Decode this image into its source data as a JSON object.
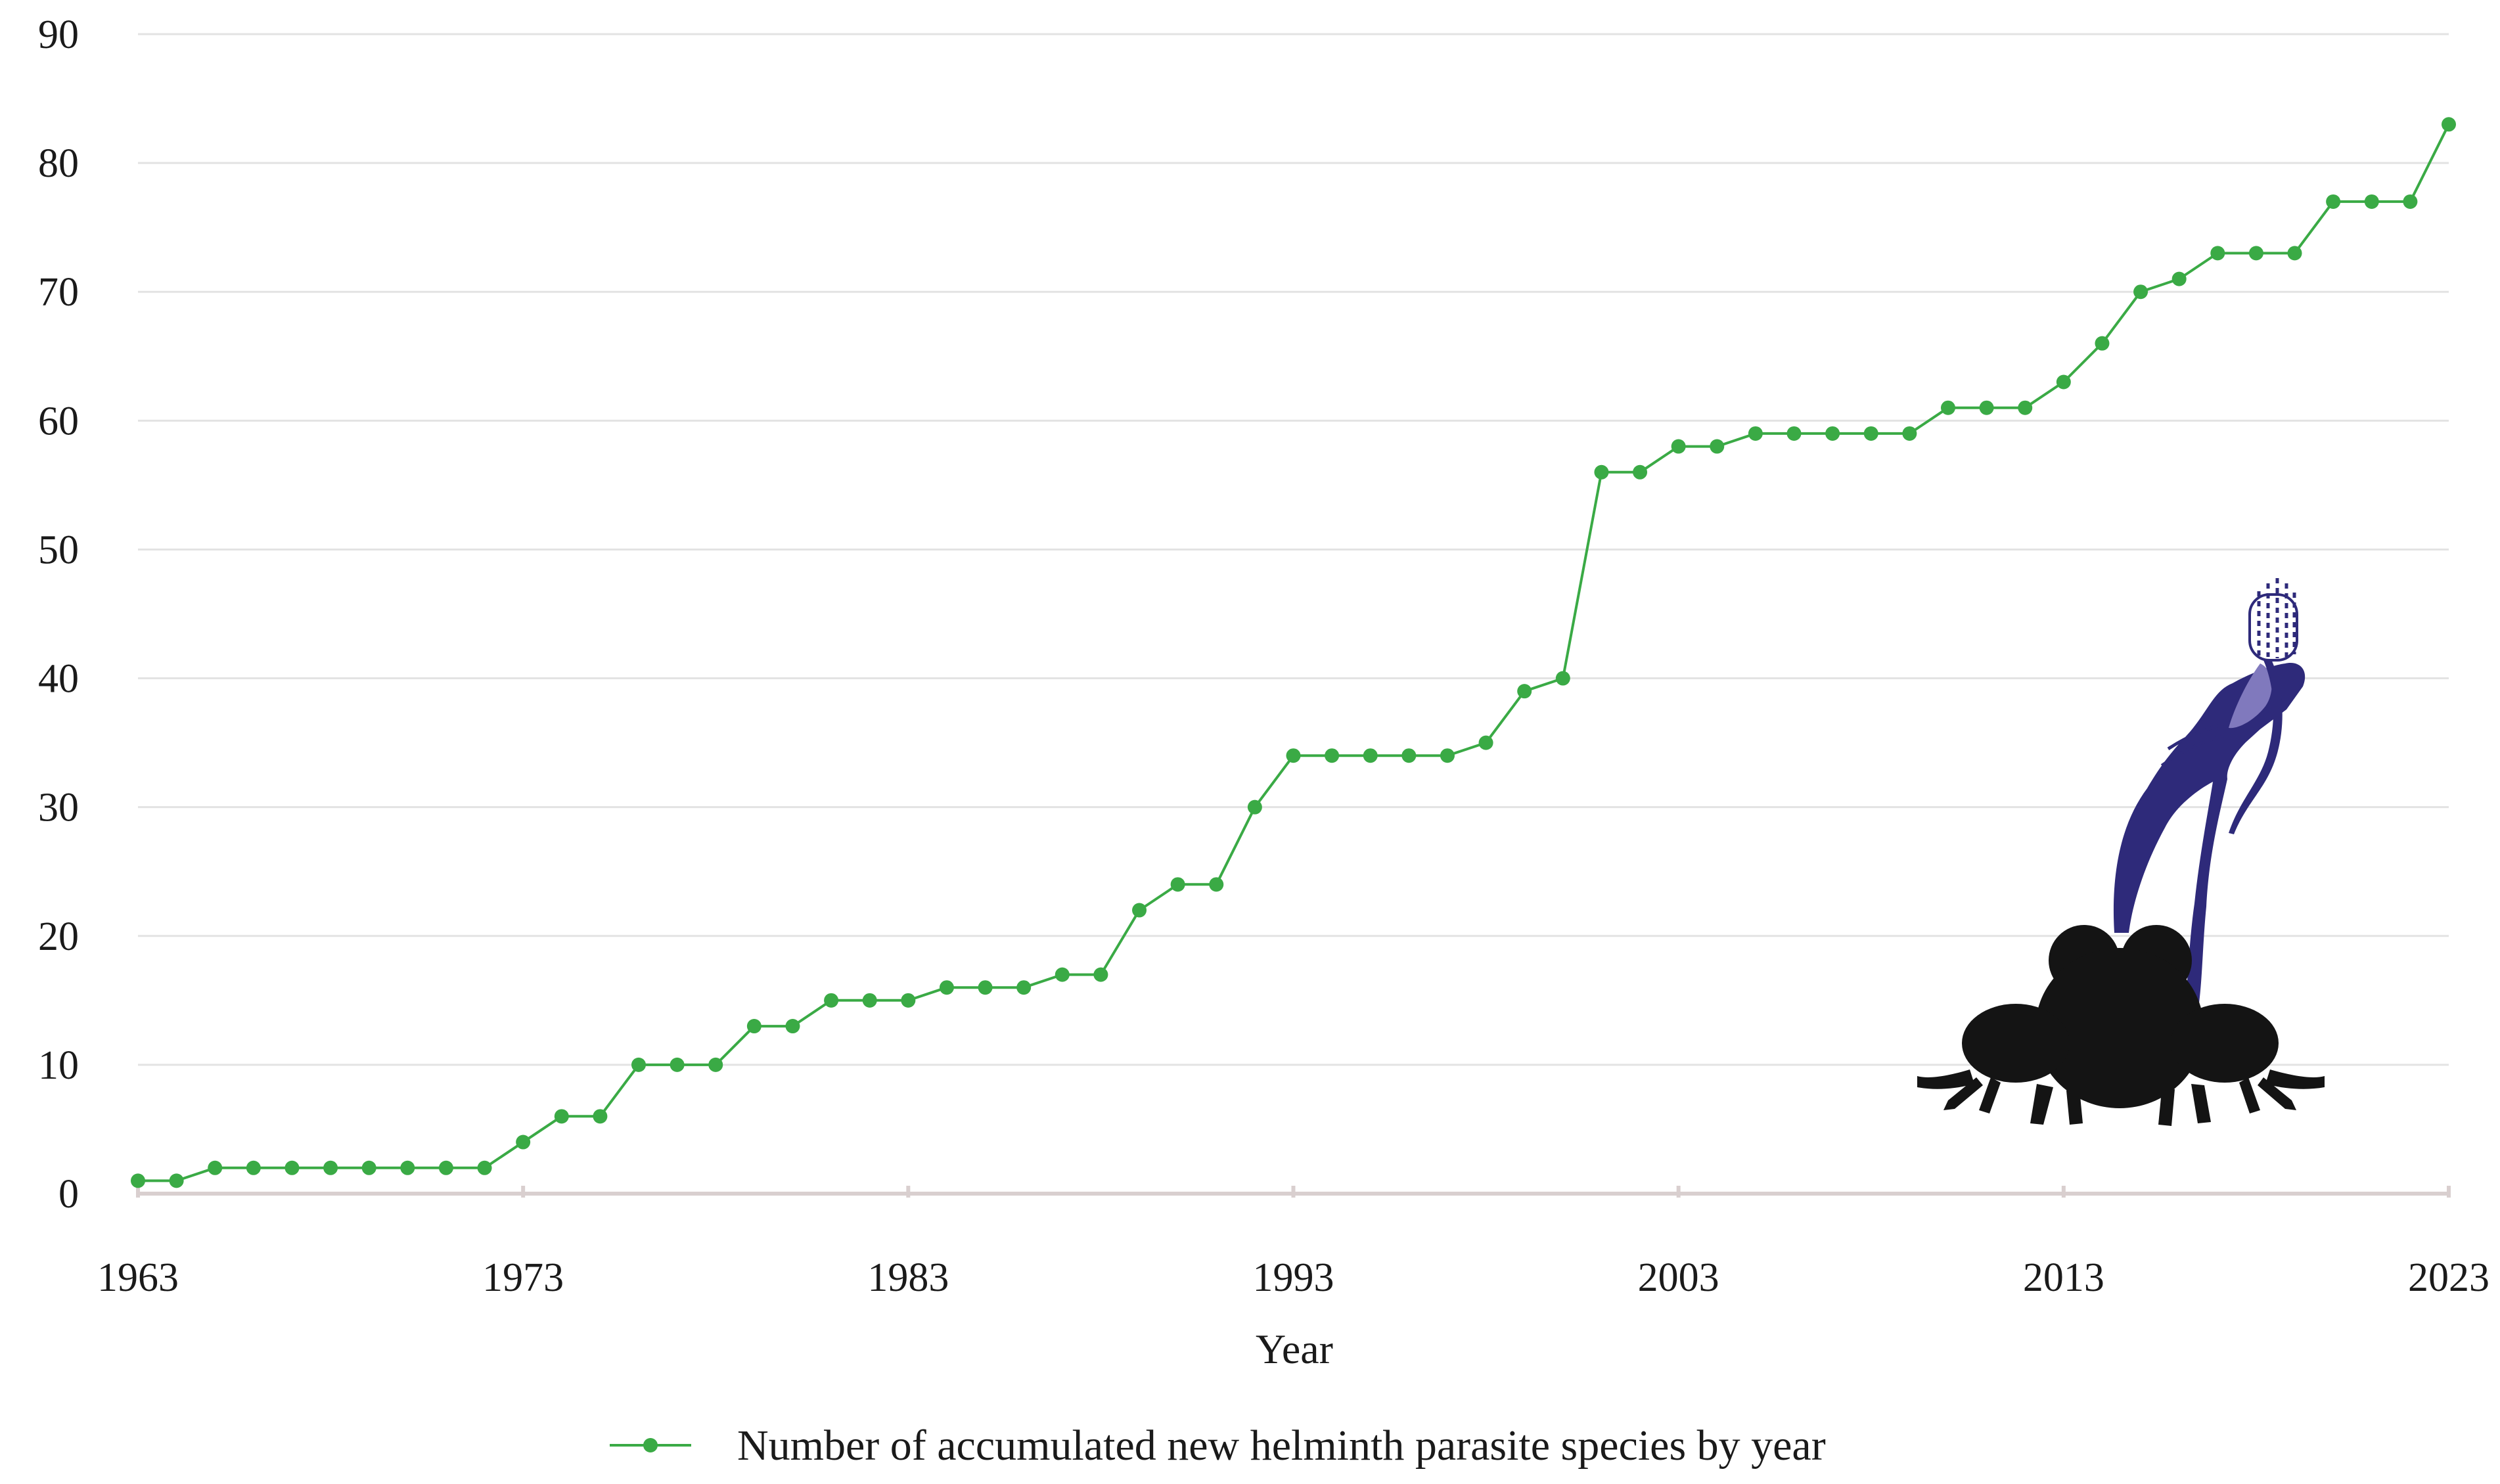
{
  "chart_data": {
    "type": "line",
    "title": "",
    "xlabel": "Year",
    "ylabel": "",
    "xlim": [
      1963,
      2023
    ],
    "ylim": [
      0,
      90
    ],
    "x_ticks": [
      "1963",
      "1973",
      "1983",
      "1993",
      "2003",
      "2013",
      "2023"
    ],
    "y_ticks": [
      "0",
      "10",
      "20",
      "30",
      "40",
      "50",
      "60",
      "70",
      "80",
      "90"
    ],
    "grid": "horizontal",
    "legend_position": "bottom-center",
    "colors": {
      "series": "#3aaa45",
      "grid": "#e3e3e3",
      "axis": "#d9cfcf",
      "frog": "#141414",
      "parasite": "#2e2a7a"
    },
    "illustration": [
      "frog-silhouette",
      "helminth-parasite"
    ],
    "series": [
      {
        "name": "Number of accumulated new helminth parasite species by year",
        "x": [
          1963,
          1964,
          1965,
          1966,
          1967,
          1968,
          1969,
          1970,
          1971,
          1972,
          1973,
          1974,
          1975,
          1976,
          1977,
          1978,
          1979,
          1980,
          1981,
          1982,
          1983,
          1984,
          1985,
          1986,
          1987,
          1988,
          1989,
          1990,
          1991,
          1992,
          1993,
          1994,
          1995,
          1996,
          1997,
          1998,
          1999,
          2000,
          2001,
          2002,
          2003,
          2004,
          2005,
          2006,
          2007,
          2008,
          2009,
          2010,
          2011,
          2012,
          2013,
          2014,
          2015,
          2016,
          2017,
          2018,
          2019,
          2020,
          2021,
          2022,
          2023
        ],
        "values": [
          1,
          1,
          2,
          2,
          2,
          2,
          2,
          2,
          2,
          2,
          4,
          6,
          6,
          10,
          10,
          10,
          13,
          13,
          15,
          15,
          15,
          16,
          16,
          16,
          17,
          17,
          22,
          24,
          24,
          30,
          34,
          34,
          34,
          34,
          34,
          35,
          39,
          40,
          56,
          56,
          58,
          58,
          59,
          59,
          59,
          59,
          59,
          61,
          61,
          61,
          63,
          66,
          70,
          71,
          73,
          73,
          73,
          77,
          77,
          77,
          83
        ]
      }
    ]
  }
}
